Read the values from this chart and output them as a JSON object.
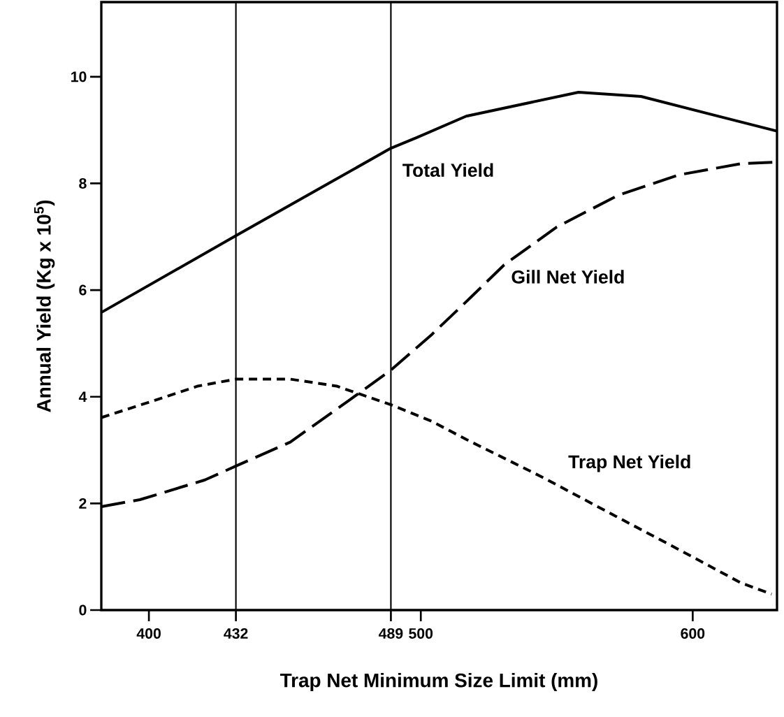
{
  "chart_data": {
    "type": "line",
    "xlabel": "Trap Net Minimum Size Limit (mm)",
    "ylabel": "Annual Yield (Kg x 10$^{5}$)",
    "xlim": [
      382.5,
      631
    ],
    "ylim": [
      0,
      11.4
    ],
    "xticks": [
      400,
      432,
      489,
      500,
      600
    ],
    "yticks": [
      0,
      2,
      4,
      6,
      8,
      10
    ],
    "grid": false,
    "legend": false,
    "marker": "none",
    "ref_lines": [
      {
        "axis": "x",
        "value": 432,
        "color": "#000000",
        "line_style": "solid"
      },
      {
        "axis": "x",
        "value": 489,
        "color": "#000000",
        "line_style": "solid"
      }
    ],
    "series": [
      {
        "name": "Total Yield",
        "color": "#000000",
        "line_style": "solid",
        "x": [
          382.5,
          432,
          489,
          498.5,
          516.7,
          558,
          581,
          631
        ],
        "values": [
          5.58,
          7.02,
          8.66,
          8.86,
          9.26,
          9.71,
          9.63,
          8.98
        ]
      },
      {
        "name": "Gill Net Yield",
        "color": "#000000",
        "line_style": "dashed",
        "x": [
          382.5,
          396.7,
          420.6,
          432,
          452,
          473.8,
          489,
          503.9,
          518.5,
          530.6,
          549.9,
          572.7,
          594.9,
          617.7,
          630.6
        ],
        "values": [
          1.94,
          2.07,
          2.44,
          2.7,
          3.15,
          3.94,
          4.5,
          5.16,
          5.87,
          6.47,
          7.18,
          7.78,
          8.16,
          8.37,
          8.4
        ]
      },
      {
        "name": "Trap Net Yield",
        "color": "#000000",
        "line_style": "dotted",
        "x": [
          382.5,
          399,
          418,
          432,
          452,
          469,
          489,
          504,
          516.7,
          544,
          571.7,
          599.5,
          617.7,
          629
        ],
        "values": [
          3.61,
          3.88,
          4.2,
          4.33,
          4.33,
          4.2,
          3.85,
          3.54,
          3.2,
          2.51,
          1.76,
          1.01,
          0.51,
          0.3
        ]
      }
    ]
  }
}
